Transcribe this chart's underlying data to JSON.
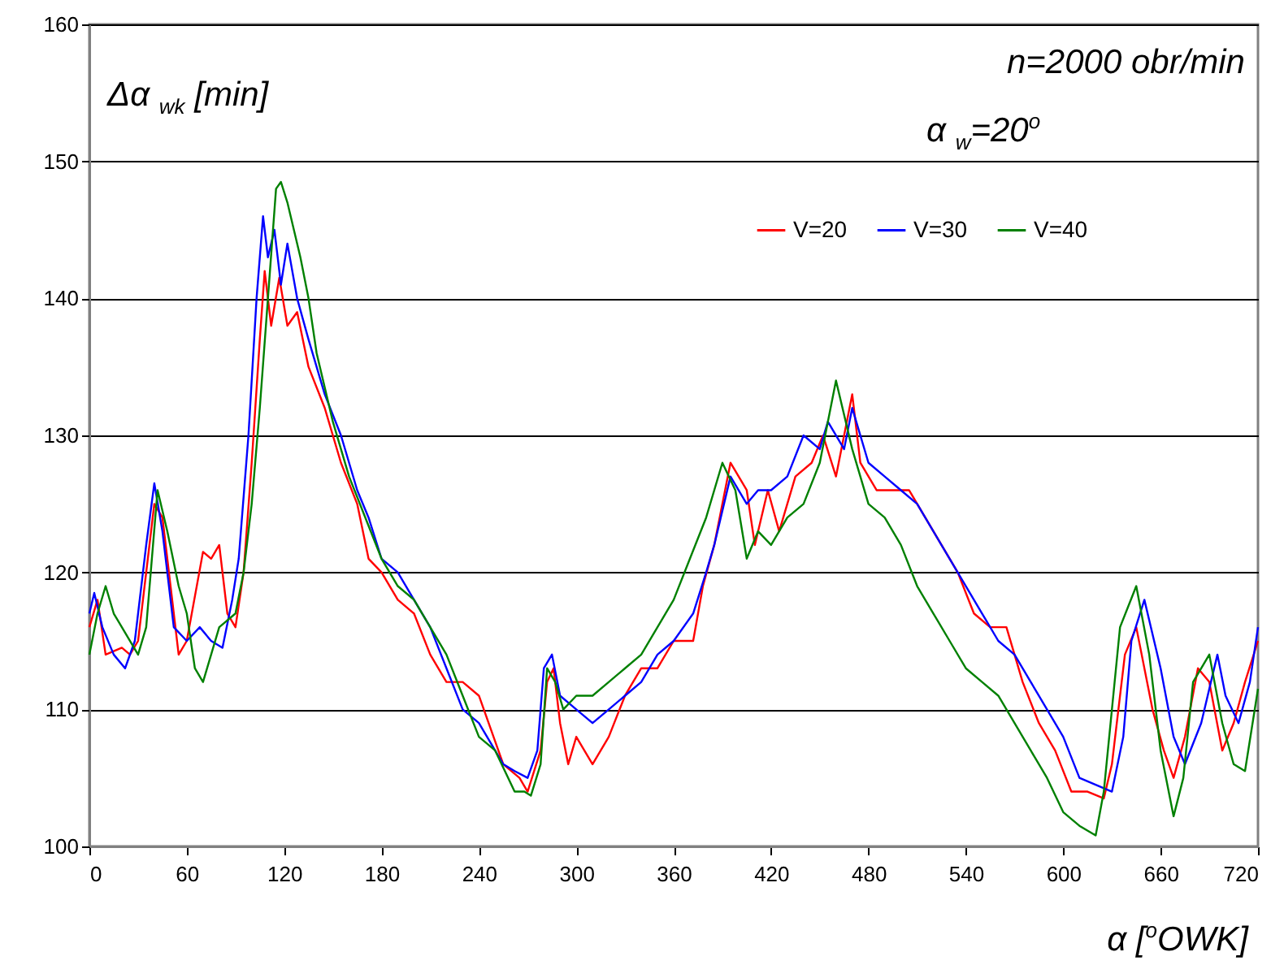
{
  "chart_data": {
    "type": "line",
    "xlabel": "α [$^{o}$OWK]",
    "ylabel": "Δα $_{wk}$ [min]",
    "annotations": [
      "n=2000 obr/min",
      "α $_{w}$=20$^{o}$"
    ],
    "xlim": [
      0,
      720
    ],
    "xticks": [
      0,
      60,
      120,
      180,
      240,
      300,
      360,
      420,
      480,
      540,
      600,
      660,
      720
    ],
    "ylim": [
      100,
      160
    ],
    "yticks": [
      100,
      110,
      120,
      130,
      140,
      150,
      160
    ],
    "grid": "y",
    "legend": "top right",
    "marker": "none",
    "line_style": "solid",
    "series": [
      {
        "name": "V=20",
        "color": "#ff0000",
        "x": [
          0,
          5,
          10,
          20,
          25,
          30,
          40,
          45,
          55,
          60,
          70,
          75,
          80,
          85,
          90,
          95,
          100,
          105,
          108,
          112,
          117,
          122,
          128,
          135,
          145,
          155,
          165,
          172,
          180,
          190,
          200,
          210,
          220,
          230,
          240,
          255,
          265,
          270,
          278,
          282,
          286,
          290,
          295,
          300,
          310,
          320,
          330,
          340,
          350,
          360,
          372,
          378,
          385,
          395,
          405,
          410,
          418,
          425,
          435,
          445,
          452,
          460,
          470,
          475,
          485,
          495,
          505,
          515,
          525,
          535,
          545,
          555,
          565,
          575,
          585,
          595,
          605,
          615,
          625,
          630,
          638,
          645,
          655,
          662,
          668,
          675,
          683,
          690,
          698,
          705,
          712,
          720
        ],
        "values": [
          116,
          118,
          114,
          114.5,
          114,
          115,
          125,
          124,
          114,
          115,
          121.5,
          121,
          122,
          117,
          116,
          120,
          128,
          137,
          142,
          138,
          141.5,
          138,
          139,
          135,
          132,
          128,
          125,
          121,
          120,
          118,
          117,
          114,
          112,
          112,
          111,
          106,
          105,
          104,
          107,
          112,
          113,
          109,
          106,
          108,
          106,
          108,
          111,
          113,
          113,
          115,
          115,
          119,
          122,
          128,
          126,
          122,
          126,
          123,
          127,
          128,
          130,
          127,
          133,
          128,
          126,
          126,
          126,
          124,
          122,
          120,
          117,
          116,
          116,
          112,
          109,
          107,
          104,
          104,
          103.5,
          106,
          114,
          116,
          110,
          107,
          105,
          108,
          113,
          112,
          107,
          109,
          112,
          115
        ]
      },
      {
        "name": "V=30",
        "color": "#0000ff",
        "x": [
          0,
          3,
          8,
          15,
          22,
          28,
          35,
          40,
          45,
          52,
          60,
          68,
          75,
          82,
          88,
          92,
          98,
          103,
          107,
          110,
          114,
          118,
          122,
          128,
          135,
          145,
          155,
          165,
          172,
          180,
          190,
          200,
          210,
          220,
          230,
          240,
          255,
          262,
          270,
          276,
          280,
          285,
          290,
          300,
          310,
          320,
          330,
          340,
          350,
          360,
          372,
          380,
          385,
          395,
          405,
          412,
          420,
          430,
          440,
          450,
          455,
          465,
          470,
          480,
          490,
          500,
          510,
          520,
          530,
          540,
          550,
          560,
          570,
          580,
          590,
          600,
          610,
          620,
          630,
          637,
          642,
          650,
          660,
          668,
          675,
          685,
          695,
          700,
          708,
          715,
          720
        ],
        "values": [
          117,
          118.5,
          116,
          114,
          113,
          115,
          122,
          126.5,
          123,
          116,
          115,
          116,
          115,
          114.5,
          118,
          121,
          130,
          140,
          146,
          143,
          145,
          141,
          144,
          140,
          137,
          133,
          130,
          126,
          124,
          121,
          120,
          118,
          116,
          113,
          110,
          109,
          106,
          105.5,
          105,
          107,
          113,
          114,
          111,
          110,
          109,
          110,
          111,
          112,
          114,
          115,
          117,
          120,
          122,
          127,
          125,
          126,
          126,
          127,
          130,
          129,
          131,
          129,
          132,
          128,
          127,
          126,
          125,
          123,
          121,
          119,
          117,
          115,
          114,
          112,
          110,
          108,
          105,
          104.5,
          104,
          108,
          115,
          118,
          113,
          108,
          106,
          109,
          114,
          111,
          109,
          112,
          116
        ]
      },
      {
        "name": "V=40",
        "color": "#008000",
        "x": [
          0,
          5,
          10,
          15,
          20,
          30,
          35,
          42,
          48,
          55,
          60,
          65,
          70,
          80,
          90,
          95,
          100,
          105,
          110,
          115,
          118,
          122,
          126,
          130,
          135,
          140,
          150,
          160,
          170,
          180,
          190,
          200,
          210,
          220,
          230,
          240,
          250,
          262,
          268,
          272,
          278,
          282,
          287,
          292,
          300,
          310,
          320,
          330,
          340,
          350,
          360,
          370,
          380,
          390,
          398,
          405,
          412,
          420,
          430,
          440,
          450,
          460,
          470,
          480,
          490,
          500,
          510,
          520,
          530,
          540,
          550,
          560,
          570,
          580,
          590,
          600,
          610,
          620,
          625,
          630,
          635,
          645,
          653,
          660,
          668,
          674,
          680,
          690,
          698,
          705,
          712,
          720
        ],
        "values": [
          114,
          117,
          119,
          117,
          116,
          114,
          116,
          126,
          123,
          119,
          117,
          113,
          112,
          116,
          117,
          120,
          125,
          132,
          140,
          148,
          148.5,
          147,
          145,
          143,
          140,
          136,
          131,
          127,
          124,
          121,
          119,
          118,
          116,
          114,
          111,
          108,
          107,
          104,
          104,
          103.7,
          106,
          113,
          112,
          110,
          111,
          111,
          112,
          113,
          114,
          116,
          118,
          121,
          124,
          128,
          126,
          121,
          123,
          122,
          124,
          125,
          128,
          134,
          129,
          125,
          124,
          122,
          119,
          117,
          115,
          113,
          112,
          111,
          109,
          107,
          105,
          102.5,
          101.5,
          100.8,
          104,
          110,
          116,
          119,
          114,
          107,
          102.2,
          105,
          112,
          114,
          109,
          106,
          105.5,
          111.5
        ]
      }
    ]
  }
}
